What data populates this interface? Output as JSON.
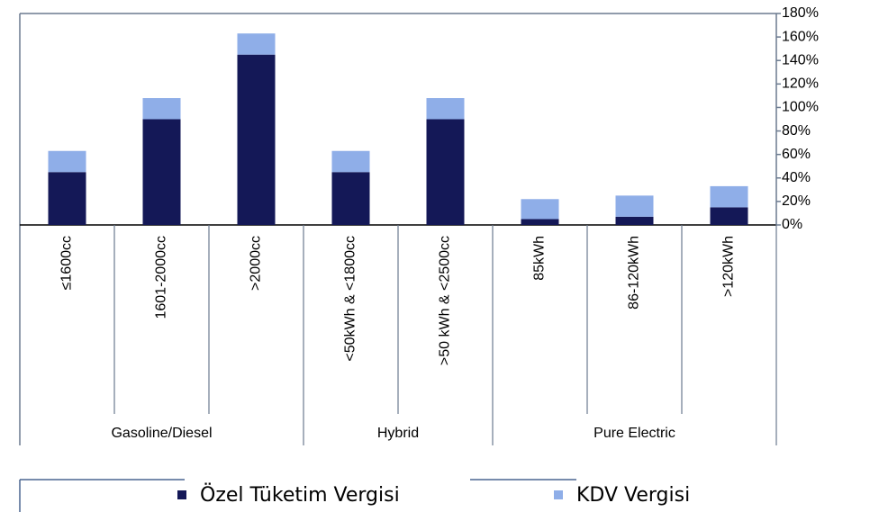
{
  "chart_data": {
    "type": "stacked_bar",
    "groups": [
      {
        "name": "Gasoline/Diesel",
        "categories": [
          "≤1600cc",
          "1601-2000cc",
          ">2000cc"
        ]
      },
      {
        "name": "Hybrid",
        "categories": [
          "<50kWh & <1800cc",
          ">50 kWh & <2500cc"
        ]
      },
      {
        "name": "Pure Electric",
        "categories": [
          "85kWh",
          "86-120kWh",
          ">120kWh"
        ]
      }
    ],
    "series": [
      {
        "name": "Özel Tüketim Vergisi",
        "color": "#141857",
        "values": [
          45,
          90,
          145,
          45,
          90,
          5,
          7,
          15
        ]
      },
      {
        "name": "KDV Vergisi",
        "color": "#8faee8",
        "values": [
          18,
          18,
          18,
          18,
          18,
          17,
          18,
          18
        ]
      }
    ],
    "ylim": [
      0,
      180
    ],
    "yticks": [
      {
        "value": 0,
        "label": "0%"
      },
      {
        "value": 20,
        "label": "20%"
      },
      {
        "value": 40,
        "label": "40%"
      },
      {
        "value": 60,
        "label": "60%"
      },
      {
        "value": 80,
        "label": "80%"
      },
      {
        "value": 100,
        "label": "100%"
      },
      {
        "value": 120,
        "label": "120%"
      },
      {
        "value": 140,
        "label": "140%"
      },
      {
        "value": 160,
        "label": "160%"
      },
      {
        "value": 180,
        "label": "180%"
      }
    ],
    "y_axis_side": "right"
  }
}
